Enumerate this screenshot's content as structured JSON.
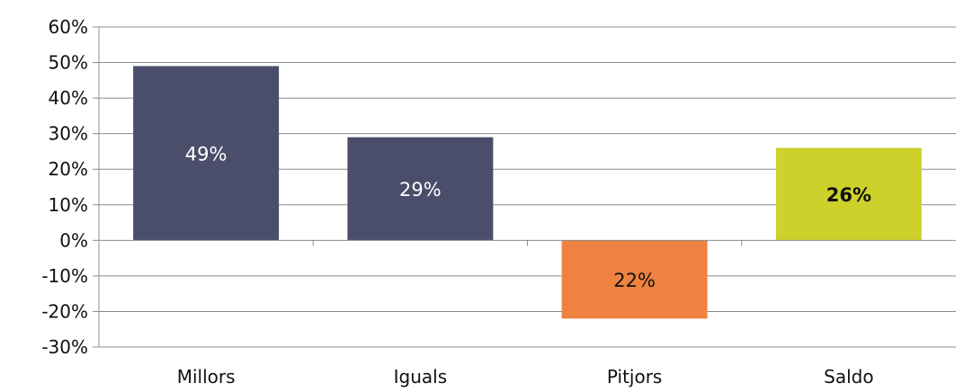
{
  "chart_data": {
    "type": "bar",
    "categories": [
      "Millors",
      "Iguals",
      "Pitjors",
      "Saldo"
    ],
    "values": [
      49,
      29,
      -22,
      26
    ],
    "data_labels": [
      "49%",
      "29%",
      "22%",
      "26%"
    ],
    "colors": [
      "#4a4e6a",
      "#4a4e6a",
      "#ef8240",
      "#cdd12c"
    ],
    "label_colors": [
      "#ffffff",
      "#ffffff",
      "#111111",
      "#111111"
    ],
    "label_bold": [
      false,
      false,
      false,
      true
    ],
    "ylim": [
      -30,
      60
    ],
    "yticks": [
      60,
      50,
      40,
      30,
      20,
      10,
      0,
      -10,
      -20,
      -30
    ],
    "ytick_labels": [
      "60%",
      "50%",
      "40%",
      "30%",
      "20%",
      "10%",
      "0%",
      "-10%",
      "-20%",
      "-30%"
    ],
    "grid": true,
    "gridline_color": "#8c8c8c",
    "title": "",
    "xlabel": "",
    "ylabel": ""
  }
}
